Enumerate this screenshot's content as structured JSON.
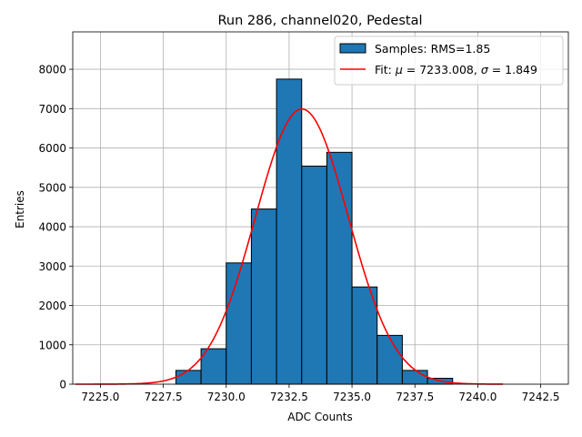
{
  "chart_data": {
    "type": "bar",
    "title": "Run 286, channel020, Pedestal",
    "xlabel": "ADC Counts",
    "ylabel": "Entries",
    "xlim": [
      7223.9,
      7243.6
    ],
    "ylim": [
      0,
      8950
    ],
    "grid": true,
    "legend_position": "top-right",
    "x_ticks": [
      7225.0,
      7227.5,
      7230.0,
      7232.5,
      7235.0,
      7237.5,
      7240.0,
      7242.5
    ],
    "x_tick_labels": [
      "7225.0",
      "7227.5",
      "7230.0",
      "7232.5",
      "7235.0",
      "7237.5",
      "7240.0",
      "7242.5"
    ],
    "y_ticks": [
      0,
      1000,
      2000,
      3000,
      4000,
      5000,
      6000,
      7000,
      8000
    ],
    "y_tick_labels": [
      "0",
      "1000",
      "2000",
      "3000",
      "4000",
      "5000",
      "6000",
      "7000",
      "8000"
    ],
    "histogram": {
      "name": "Samples: RMS=1.85",
      "color": "#1f77b4",
      "edge_color": "#000000",
      "bin_width": 1,
      "bins": [
        {
          "x0": 7227,
          "x1": 7228,
          "count": 0
        },
        {
          "x0": 7228,
          "x1": 7229,
          "count": 350
        },
        {
          "x0": 7229,
          "x1": 7230,
          "count": 900
        },
        {
          "x0": 7230,
          "x1": 7231,
          "count": 3080
        },
        {
          "x0": 7231,
          "x1": 7232,
          "count": 4450
        },
        {
          "x0": 7232,
          "x1": 7233,
          "count": 7750
        },
        {
          "x0": 7233,
          "x1": 7234,
          "count": 5540
        },
        {
          "x0": 7234,
          "x1": 7235,
          "count": 5890
        },
        {
          "x0": 7235,
          "x1": 7236,
          "count": 2470
        },
        {
          "x0": 7236,
          "x1": 7237,
          "count": 1240
        },
        {
          "x0": 7237,
          "x1": 7238,
          "count": 350
        },
        {
          "x0": 7238,
          "x1": 7239,
          "count": 150
        }
      ]
    },
    "fit": {
      "name_prefix": "Fit: ",
      "mu_symbol": "μ",
      "sigma_symbol": "σ",
      "mu_text": " = 7233.008, ",
      "sigma_text": " = 1.849",
      "mu": 7233.008,
      "sigma": 1.849,
      "amplitude": 6990,
      "x_range": [
        7224.0,
        7241.0
      ],
      "color": "#ff0000"
    },
    "legend": {
      "samples_label": "Samples: RMS=1.85"
    }
  }
}
